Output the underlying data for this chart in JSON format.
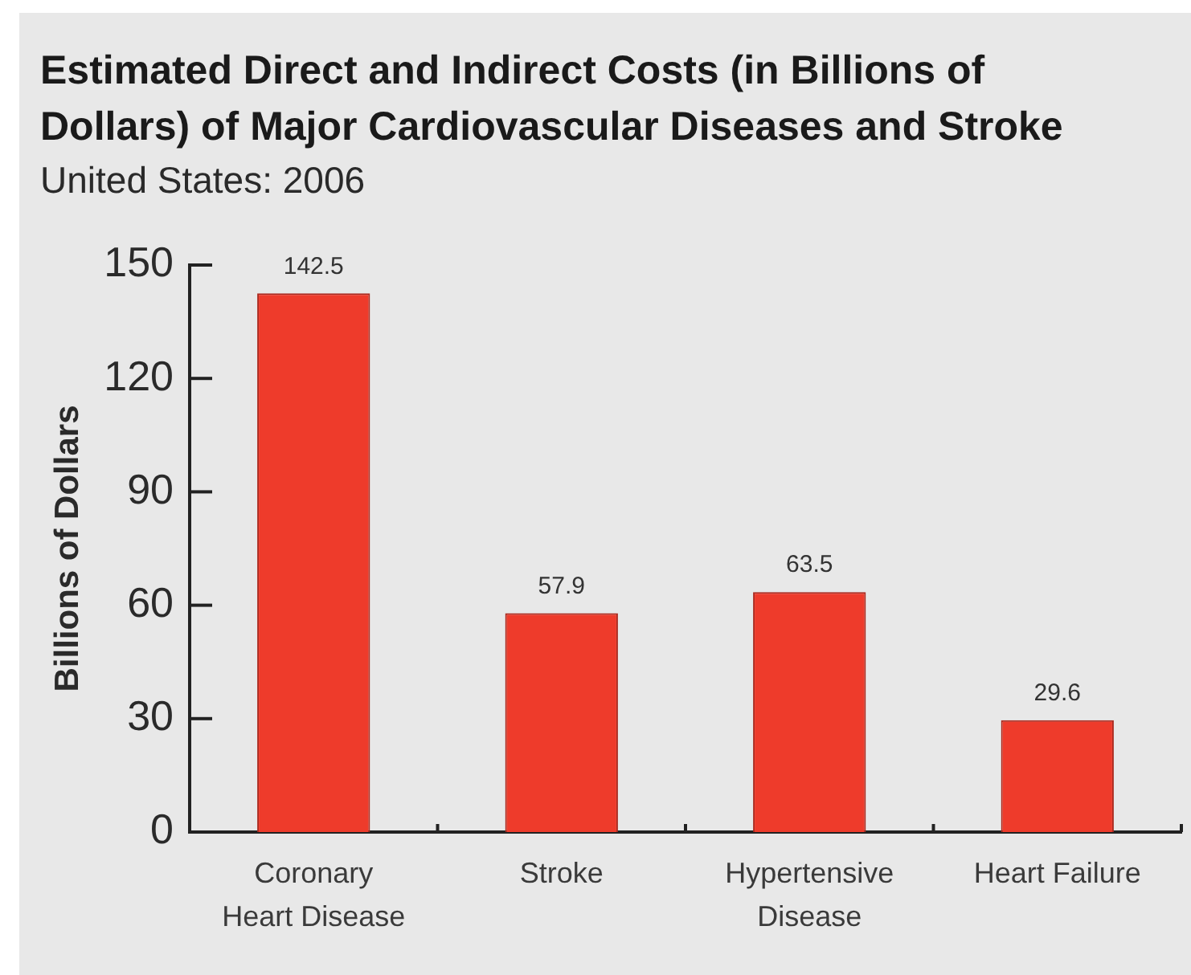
{
  "chart_data": {
    "type": "bar",
    "title": "Estimated Direct and Indirect Costs (in Billions of Dollars) of Major Cardiovascular Diseases and Stroke",
    "subtitle": "United States: 2006",
    "ylabel": "Billions of Dollars",
    "categories": [
      "Coronary Heart Disease",
      "Stroke",
      "Hypertensive Disease",
      "Heart Failure"
    ],
    "values": [
      142.5,
      57.9,
      63.5,
      29.6
    ],
    "color": "#ee3b2b",
    "ylim": [
      0,
      150
    ],
    "yticks": [
      0,
      30,
      60,
      90,
      120,
      150
    ],
    "data_labels": true
  }
}
